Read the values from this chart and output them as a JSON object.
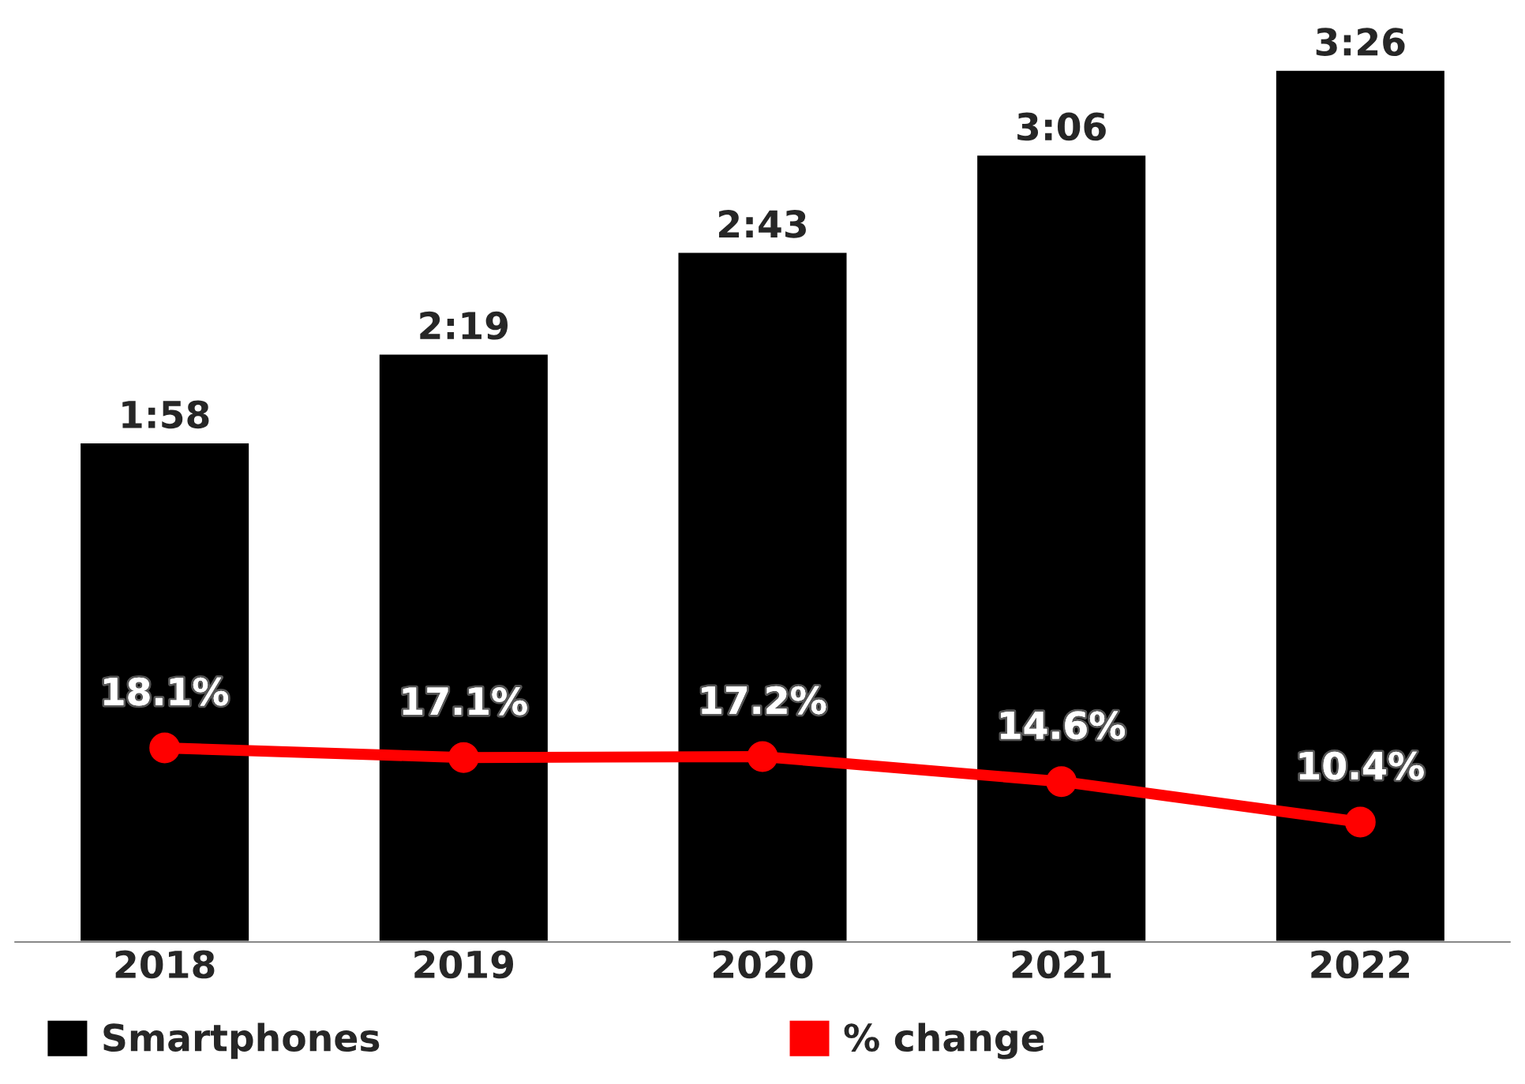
{
  "chart_data": {
    "type": "bar",
    "categories": [
      "2018",
      "2019",
      "2020",
      "2021",
      "2022"
    ],
    "series": [
      {
        "name": "Smartphones",
        "color": "#000000",
        "values": [
          118,
          139,
          163,
          186,
          206
        ],
        "value_labels": [
          "1:58",
          "2:19",
          "2:43",
          "3:06",
          "3:26"
        ]
      },
      {
        "name": "% change",
        "type": "line",
        "axis": "y2",
        "color": "#ff0000",
        "values": [
          18.1,
          17.1,
          17.2,
          14.6,
          10.4
        ],
        "value_labels": [
          "18.1%",
          "17.1%",
          "17.2%",
          "14.6%",
          "10.4%"
        ]
      }
    ],
    "tick_labels": "x",
    "grid": false,
    "legend": "bottom",
    "marker": "circle",
    "line_style": "solid"
  }
}
